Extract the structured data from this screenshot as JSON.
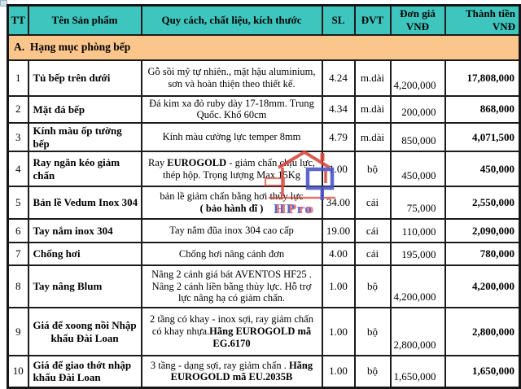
{
  "colors": {
    "header_bg": "#3ec6be",
    "section_bg": "#fbc68c",
    "border": "#1b1b1b",
    "watermark_red": "#d8453c",
    "watermark_blue": "#4a52c5"
  },
  "table": {
    "columns": [
      {
        "key": "tt",
        "label": "TT"
      },
      {
        "key": "name",
        "label": "Tên Sản phẩm"
      },
      {
        "key": "spec",
        "label": "Quy cách, chất liệu, kích thước"
      },
      {
        "key": "qty",
        "label": "SL"
      },
      {
        "key": "unit",
        "label": "ĐVT"
      },
      {
        "key": "price",
        "label": "Đơn giá\nVNĐ"
      },
      {
        "key": "total",
        "label": "Thành tiền\nVNĐ"
      }
    ],
    "section": {
      "label": "A.  Hạng mục phòng bếp"
    },
    "rows": [
      {
        "tt": "1",
        "name": "Tủ bếp trên dưới",
        "spec": [
          {
            "t": "Gỗ sồi mỹ tự nhiên., mặt hậu aluminium, sơn và hoàn thiện theo thiết kế.",
            "b": false
          }
        ],
        "qty": "4.24",
        "unit": "m.dài",
        "price": "4,200,000",
        "total": "17,808,000"
      },
      {
        "tt": "2",
        "name": "Mặt đá bếp",
        "spec": [
          {
            "t": "Đá kim xa đỏ ruby dày 17-18mm. Trung Quốc. Khổ 60cm",
            "b": false
          }
        ],
        "qty": "4.34",
        "unit": "m.dài",
        "price": "200,000",
        "total": "868,000"
      },
      {
        "tt": "3",
        "name": "Kính màu ốp tường bếp",
        "spec": [
          {
            "t": "Kính màu cường lực temper 8mm",
            "b": false
          }
        ],
        "qty": "4.79",
        "unit": "m.dài",
        "price": "850,000",
        "total": "4,071,500"
      },
      {
        "tt": "4",
        "name": "Ray ngăn kéo giảm chấn",
        "spec": [
          {
            "t": "Ray ",
            "b": false
          },
          {
            "t": "EUROGOLD",
            "b": true
          },
          {
            "t": " - giảm chấn chịu lực, thép hộp. Trọng lượng Max 15Kg",
            "b": false
          }
        ],
        "qty": "1.00",
        "unit": "bộ",
        "price": "450,000",
        "total": "450,000"
      },
      {
        "tt": "5",
        "name": "Bản lề Vedum Inox 304",
        "spec": [
          {
            "t": "bản lề giảm chấn bằng hơi thủy lực",
            "b": false
          },
          {
            "t": "( bảo hành dĩ )",
            "b": true,
            "nl": true
          }
        ],
        "qty": "34.00",
        "unit": "cái",
        "price": "75,000",
        "total": "2,550,000"
      },
      {
        "tt": "6",
        "name": "Tay nắm inox 304",
        "spec": [
          {
            "t": "Tay nắm đũa inox 304 cao cấp",
            "b": false
          }
        ],
        "qty": "19.00",
        "unit": "cái",
        "price": "110,000",
        "total": "2,090,000"
      },
      {
        "tt": "7",
        "name": "Chống hơi",
        "spec": [
          {
            "t": "Chống hơi nâng cánh đơn",
            "b": false
          }
        ],
        "qty": "4.00",
        "unit": "cái",
        "price": "195,000",
        "total": "780,000"
      },
      {
        "tt": "8",
        "name": "Tay nâng Blum",
        "spec": [
          {
            "t": "Nâng 2 cánh giá bát  AVENTOS HF25 . Nâng 2 cánh liền bằng thủy lực. Hỗ trợ lực nâng hạ có giảm chấn.",
            "b": false
          }
        ],
        "qty": "1.00",
        "unit": "bộ",
        "price": "4,200,000",
        "total": "4,200,000"
      },
      {
        "tt": "9",
        "name": "Giá để xoong nồi Nhập khẩu Đài Loan",
        "name_center": true,
        "spec": [
          {
            "t": "2 tầng có khay - inox sợi, ray giảm chấn có khay nhựa.",
            "b": false
          },
          {
            "t": "Hãng EUROGOLD mã EG.6170",
            "b": true
          }
        ],
        "qty": "1.00",
        "unit": "bộ",
        "price": "2,800,000",
        "total": "2,800,000"
      },
      {
        "tt": "10",
        "name": "Giá để giao thớt nhập khẩu Đài Loan",
        "spec": [
          {
            "t": "3 tầng  - dạng sợi, ray giảm chấn . ",
            "b": false
          },
          {
            "t": "Hãng EUROGOLD mã EU.2035B",
            "b": true
          }
        ],
        "qty": "1.00",
        "unit": "bộ",
        "price": "1,650,000",
        "total": "1,650,000"
      }
    ]
  },
  "watermark": {
    "text": "HPro"
  }
}
